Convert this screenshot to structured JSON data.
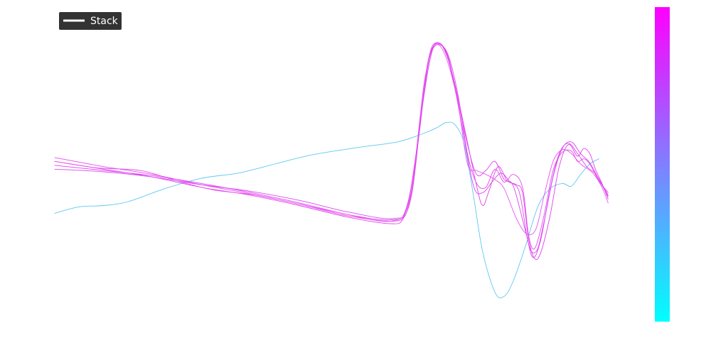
{
  "chart_data": {
    "type": "line",
    "title": "",
    "xlabel": "",
    "ylabel": "",
    "x_domain": [
      0,
      1
    ],
    "y_domain": [
      -1.0,
      1.2
    ],
    "grid": false,
    "axes_visible": false,
    "legend": {
      "position": "top-left",
      "entries": [
        "Stack"
      ],
      "background": "#333333",
      "text_color": "#ffffff"
    },
    "colorbar": {
      "position": "right",
      "colors": [
        "#00ffff",
        "#ff00ff"
      ],
      "tick_labels": []
    },
    "series": [
      {
        "color": "#5ec8f0",
        "points": [
          [
            0.0,
            -0.28
          ],
          [
            0.04,
            -0.23
          ],
          [
            0.08,
            -0.22
          ],
          [
            0.12,
            -0.19
          ],
          [
            0.18,
            -0.09
          ],
          [
            0.24,
            -0.01
          ],
          [
            0.3,
            0.03
          ],
          [
            0.36,
            0.1
          ],
          [
            0.42,
            0.17
          ],
          [
            0.5,
            0.23
          ],
          [
            0.56,
            0.27
          ],
          [
            0.6,
            0.33
          ],
          [
            0.625,
            0.38
          ],
          [
            0.64,
            0.42
          ],
          [
            0.655,
            0.4
          ],
          [
            0.67,
            0.25
          ],
          [
            0.685,
            -0.15
          ],
          [
            0.7,
            -0.58
          ],
          [
            0.72,
            -0.89
          ],
          [
            0.735,
            -0.92
          ],
          [
            0.75,
            -0.8
          ],
          [
            0.77,
            -0.53
          ],
          [
            0.79,
            -0.23
          ],
          [
            0.81,
            -0.09
          ],
          [
            0.83,
            -0.05
          ],
          [
            0.845,
            -0.07
          ],
          [
            0.86,
            0.02
          ],
          [
            0.875,
            0.1
          ],
          [
            0.89,
            0.14
          ]
        ]
      },
      {
        "color": "#e040ec",
        "points": [
          [
            0.0,
            0.12
          ],
          [
            0.08,
            0.06
          ],
          [
            0.16,
            0.0
          ],
          [
            0.24,
            -0.08
          ],
          [
            0.32,
            -0.14
          ],
          [
            0.4,
            -0.22
          ],
          [
            0.48,
            -0.31
          ],
          [
            0.55,
            -0.36
          ],
          [
            0.57,
            -0.32
          ],
          [
            0.585,
            -0.1
          ],
          [
            0.6,
            0.5
          ],
          [
            0.615,
            0.93
          ],
          [
            0.625,
            1.02
          ],
          [
            0.635,
            1.0
          ],
          [
            0.65,
            0.8
          ],
          [
            0.67,
            0.38
          ],
          [
            0.69,
            -0.07
          ],
          [
            0.7,
            -0.22
          ],
          [
            0.71,
            -0.11
          ],
          [
            0.725,
            0.08
          ],
          [
            0.74,
            -0.03
          ],
          [
            0.755,
            -0.06
          ],
          [
            0.765,
            -0.12
          ],
          [
            0.775,
            -0.48
          ],
          [
            0.785,
            -0.63
          ],
          [
            0.795,
            -0.58
          ],
          [
            0.81,
            -0.3
          ],
          [
            0.825,
            0.08
          ],
          [
            0.84,
            0.25
          ],
          [
            0.855,
            0.16
          ],
          [
            0.865,
            0.22
          ],
          [
            0.875,
            0.18
          ],
          [
            0.885,
            0.05
          ],
          [
            0.895,
            -0.05
          ],
          [
            0.905,
            -0.17
          ]
        ]
      },
      {
        "color": "#e64aef",
        "points": [
          [
            0.0,
            0.15
          ],
          [
            0.08,
            0.08
          ],
          [
            0.16,
            0.02
          ],
          [
            0.24,
            -0.06
          ],
          [
            0.32,
            -0.13
          ],
          [
            0.4,
            -0.21
          ],
          [
            0.48,
            -0.3
          ],
          [
            0.555,
            -0.34
          ],
          [
            0.575,
            -0.25
          ],
          [
            0.59,
            0.15
          ],
          [
            0.605,
            0.75
          ],
          [
            0.62,
            1.01
          ],
          [
            0.632,
            1.02
          ],
          [
            0.645,
            0.92
          ],
          [
            0.66,
            0.62
          ],
          [
            0.675,
            0.18
          ],
          [
            0.69,
            -0.05
          ],
          [
            0.705,
            -0.08
          ],
          [
            0.72,
            0.06
          ],
          [
            0.735,
            -0.04
          ],
          [
            0.75,
            0.02
          ],
          [
            0.765,
            -0.08
          ],
          [
            0.775,
            -0.45
          ],
          [
            0.785,
            -0.55
          ],
          [
            0.8,
            -0.3
          ],
          [
            0.815,
            0.05
          ],
          [
            0.83,
            0.19
          ],
          [
            0.845,
            0.2
          ],
          [
            0.855,
            0.12
          ],
          [
            0.865,
            0.14
          ],
          [
            0.875,
            0.1
          ],
          [
            0.89,
            -0.03
          ],
          [
            0.905,
            -0.12
          ]
        ]
      },
      {
        "color": "#dd44ee",
        "points": [
          [
            0.0,
            0.09
          ],
          [
            0.08,
            0.05
          ],
          [
            0.16,
            0.01
          ],
          [
            0.24,
            -0.05
          ],
          [
            0.32,
            -0.12
          ],
          [
            0.4,
            -0.2
          ],
          [
            0.48,
            -0.29
          ],
          [
            0.55,
            -0.33
          ],
          [
            0.575,
            -0.24
          ],
          [
            0.595,
            0.3
          ],
          [
            0.61,
            0.88
          ],
          [
            0.625,
            1.03
          ],
          [
            0.64,
            0.96
          ],
          [
            0.655,
            0.68
          ],
          [
            0.675,
            0.25
          ],
          [
            0.69,
            0.02
          ],
          [
            0.705,
            0.05
          ],
          [
            0.72,
            0.12
          ],
          [
            0.735,
            -0.02
          ],
          [
            0.75,
            -0.07
          ],
          [
            0.77,
            -0.42
          ],
          [
            0.782,
            -0.62
          ],
          [
            0.795,
            -0.48
          ],
          [
            0.81,
            -0.1
          ],
          [
            0.825,
            0.18
          ],
          [
            0.84,
            0.26
          ],
          [
            0.855,
            0.18
          ],
          [
            0.87,
            0.08
          ],
          [
            0.885,
            0.02
          ],
          [
            0.9,
            -0.1
          ],
          [
            0.905,
            -0.14
          ]
        ]
      },
      {
        "color": "#d84aee",
        "points": [
          [
            0.0,
            0.06
          ],
          [
            0.08,
            0.04
          ],
          [
            0.16,
            0.0
          ],
          [
            0.24,
            -0.06
          ],
          [
            0.32,
            -0.11
          ],
          [
            0.4,
            -0.18
          ],
          [
            0.48,
            -0.27
          ],
          [
            0.555,
            -0.32
          ],
          [
            0.58,
            -0.2
          ],
          [
            0.6,
            0.52
          ],
          [
            0.615,
            0.96
          ],
          [
            0.63,
            1.02
          ],
          [
            0.645,
            0.9
          ],
          [
            0.665,
            0.42
          ],
          [
            0.685,
            -0.07
          ],
          [
            0.7,
            -0.12
          ],
          [
            0.715,
            -0.04
          ],
          [
            0.73,
            0.03
          ],
          [
            0.745,
            -0.04
          ],
          [
            0.76,
            -0.12
          ],
          [
            0.775,
            -0.52
          ],
          [
            0.788,
            -0.57
          ],
          [
            0.8,
            -0.35
          ],
          [
            0.815,
            0.0
          ],
          [
            0.83,
            0.22
          ],
          [
            0.845,
            0.27
          ],
          [
            0.86,
            0.18
          ],
          [
            0.875,
            0.11
          ],
          [
            0.89,
            -0.02
          ],
          [
            0.905,
            -0.15
          ]
        ]
      },
      {
        "color": "#ea52f2",
        "points": [
          [
            0.0,
            0.12
          ],
          [
            0.07,
            0.07
          ],
          [
            0.14,
            0.05
          ],
          [
            0.2,
            -0.03
          ],
          [
            0.26,
            -0.1
          ],
          [
            0.33,
            -0.14
          ],
          [
            0.4,
            -0.21
          ],
          [
            0.47,
            -0.28
          ],
          [
            0.55,
            -0.34
          ],
          [
            0.58,
            -0.18
          ],
          [
            0.6,
            0.55
          ],
          [
            0.615,
            0.98
          ],
          [
            0.63,
            1.01
          ],
          [
            0.645,
            0.85
          ],
          [
            0.66,
            0.55
          ],
          [
            0.675,
            0.1
          ],
          [
            0.69,
            0.05
          ],
          [
            0.705,
            0.02
          ],
          [
            0.72,
            -0.02
          ],
          [
            0.735,
            -0.09
          ],
          [
            0.755,
            -0.32
          ],
          [
            0.772,
            -0.44
          ],
          [
            0.787,
            -0.4
          ],
          [
            0.8,
            -0.15
          ],
          [
            0.815,
            0.12
          ],
          [
            0.83,
            0.21
          ],
          [
            0.845,
            0.18
          ],
          [
            0.86,
            0.1
          ],
          [
            0.88,
            0.03
          ],
          [
            0.895,
            -0.08
          ],
          [
            0.905,
            -0.2
          ]
        ]
      }
    ]
  }
}
